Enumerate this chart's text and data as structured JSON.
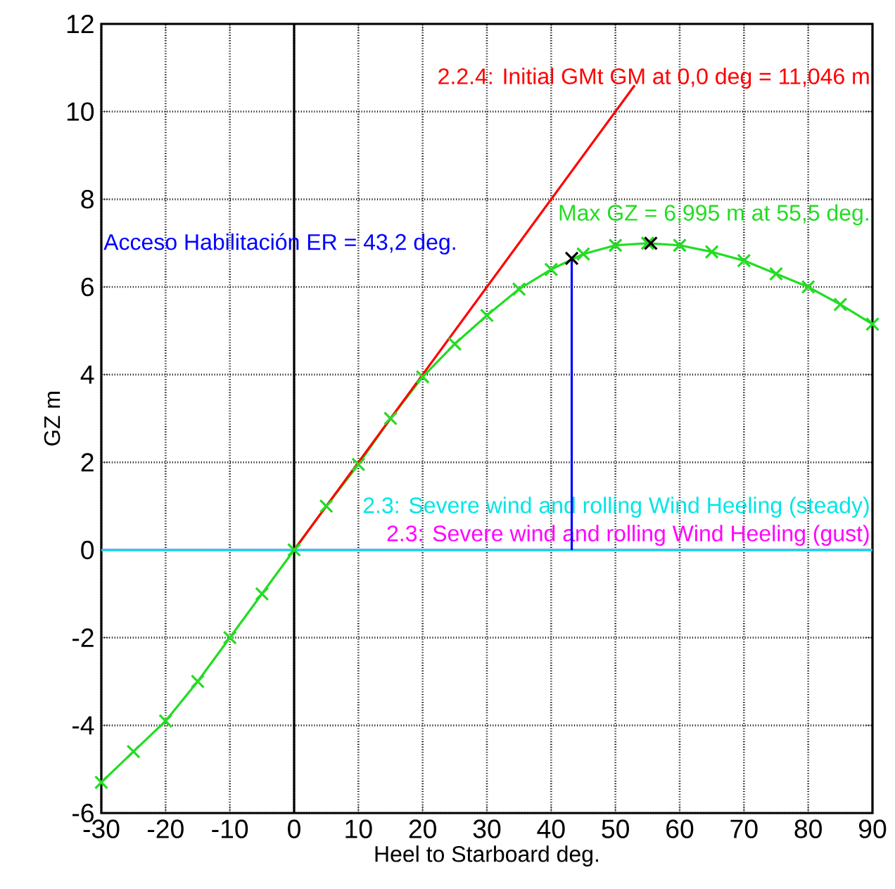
{
  "chart_data": {
    "type": "line",
    "xlabel": "Heel to Starboard   deg.",
    "ylabel": "GZ  m",
    "xlim": [
      -30,
      90
    ],
    "xticks": [
      -30,
      -20,
      -10,
      0,
      10,
      20,
      30,
      40,
      50,
      60,
      70,
      80,
      90
    ],
    "ylim": [
      -6,
      12
    ],
    "yticks": [
      -6,
      -4,
      -2,
      0,
      2,
      4,
      6,
      8,
      10,
      12
    ],
    "grid": true,
    "series": [
      {
        "name": "Max GZ = 6,995 m at 55,5 deg.",
        "color": "#22dd22",
        "marker": "cross",
        "x": [
          -30,
          -25,
          -20,
          -15,
          -10,
          -5,
          0,
          5,
          10,
          15,
          20,
          25,
          30,
          35,
          40,
          45,
          50,
          55,
          60,
          65,
          70,
          75,
          80,
          85,
          90
        ],
        "values": [
          -5.3,
          -4.6,
          -3.9,
          -3.0,
          -2.0,
          -1.0,
          0,
          1.0,
          1.95,
          3.0,
          3.95,
          4.7,
          5.35,
          5.95,
          6.4,
          6.75,
          6.95,
          6.995,
          6.95,
          6.8,
          6.6,
          6.3,
          6.0,
          5.6,
          5.15
        ]
      },
      {
        "type": "scatter",
        "color": "#000000",
        "marker": "cross",
        "x": [
          43.2,
          55.5
        ],
        "values": [
          6.65,
          6.995
        ]
      },
      {
        "name": "2.2.4: Initial GMt GM at 0,0 deg = 11,046 m",
        "color": "#ff0000",
        "x": [
          0,
          53
        ],
        "values": [
          0,
          10.6
        ]
      },
      {
        "name": "Acceso Habilitación ER = 43,2 deg.",
        "color": "#0000ff",
        "x": [
          43.2,
          43.2
        ],
        "values": [
          0,
          6.65
        ]
      }
    ],
    "ref_lines": [
      {
        "axis": "x",
        "value": 0,
        "color": "#000000"
      },
      {
        "axis": "y",
        "value": 0,
        "color": "#ff00ff",
        "label": "2.3: Severe wind and rolling Wind Heeling (gust)"
      },
      {
        "axis": "y",
        "value": 0,
        "color": "#00e5e5",
        "label": "2.3: Severe wind and rolling Wind Heeling (steady)"
      }
    ]
  }
}
